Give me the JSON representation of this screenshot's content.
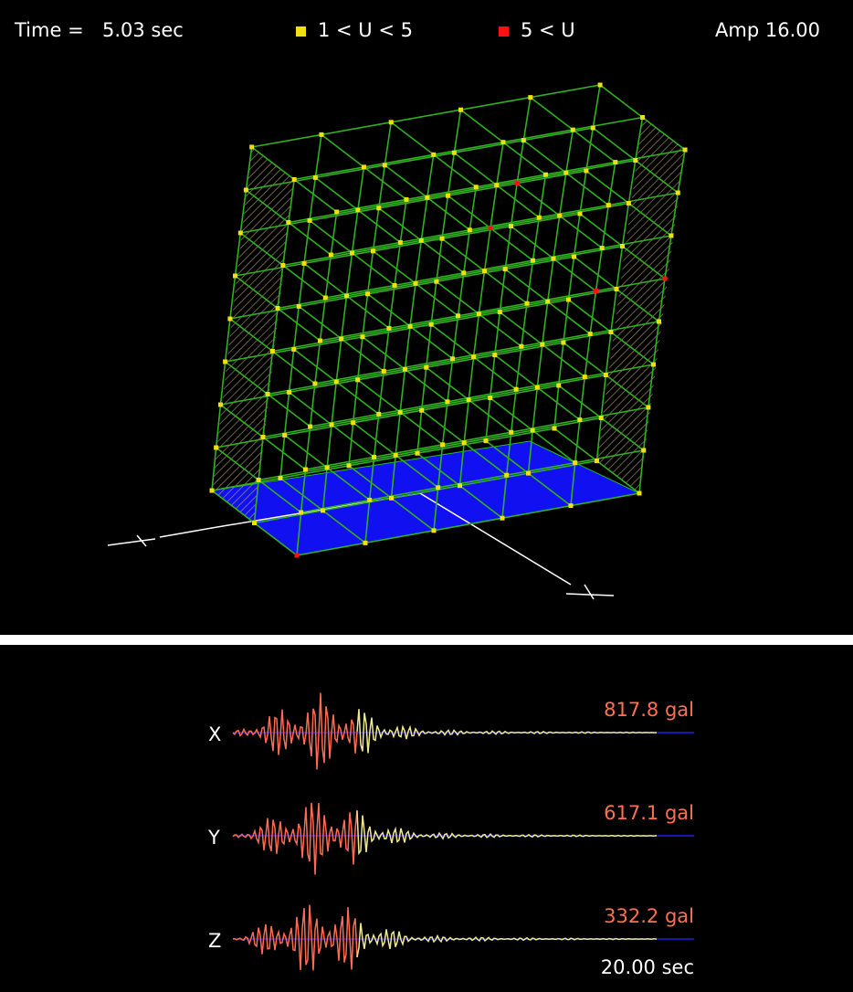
{
  "header": {
    "time_label": "Time =",
    "time": "5.03 sec",
    "legend": [
      {
        "label": "1 < U < 5",
        "color": "#f0e010"
      },
      {
        "label": "5 < U",
        "color": "#ff1010"
      }
    ],
    "amp": "Amp 16.00"
  },
  "records": [
    {
      "axis": "X",
      "peak": "817.8 gal"
    },
    {
      "axis": "Y",
      "peak": "617.1 gal"
    },
    {
      "axis": "Z",
      "peak": "332.2 gal"
    }
  ],
  "duration": "20.00 sec"
}
